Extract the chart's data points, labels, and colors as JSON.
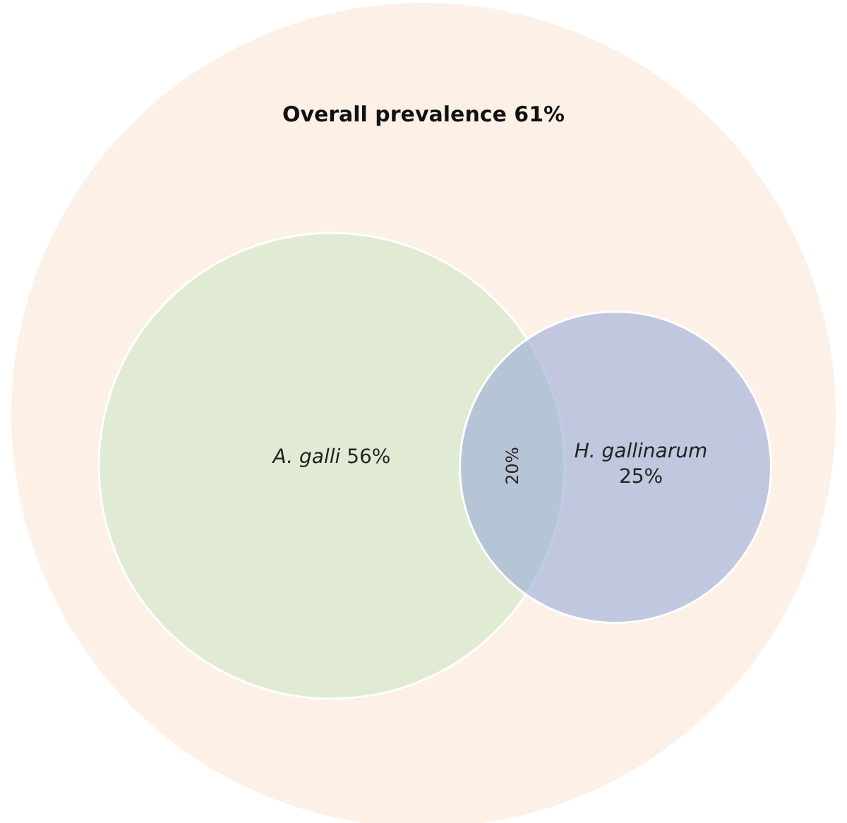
{
  "chart_data": {
    "type": "other",
    "title": "Overall prevalence 61%",
    "categories": [
      "A. galli",
      "H. gallinarum"
    ],
    "values": [
      56,
      25
    ],
    "value_labels": [
      "56%",
      "25%"
    ],
    "colors": [
      "#e1ebd3",
      "#9bafd9"
    ],
    "annotations": [
      "20%"
    ]
  }
}
